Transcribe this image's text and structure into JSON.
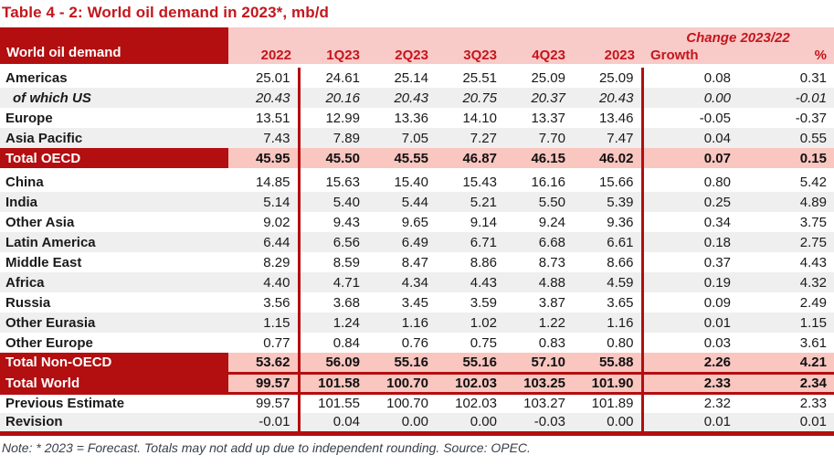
{
  "title": "Table 4 - 2: World oil demand in 2023*, mb/d",
  "note": "Note: * 2023 = Forecast. Totals may not add up due to independent rounding. Source: OPEC.",
  "colors": {
    "dark_red": "#b30e10",
    "header_text_red": "#c4161c",
    "pink_header": "#f8cac8",
    "pink_total": "#f9c6c0",
    "alt_row_gray": "#efefef",
    "note_text": "#3a4049"
  },
  "table": {
    "corner_label": "World oil demand",
    "change_header": "Change 2023/22",
    "columns": [
      "2022",
      "1Q23",
      "2Q23",
      "3Q23",
      "4Q23",
      "2023",
      "Growth",
      "%"
    ],
    "sections": [
      {
        "rows": [
          {
            "label": "Americas",
            "style": "plain",
            "values": [
              "25.01",
              "24.61",
              "25.14",
              "25.51",
              "25.09",
              "25.09",
              "0.08",
              "0.31"
            ]
          },
          {
            "label": "of which US",
            "style": "italic",
            "values": [
              "20.43",
              "20.16",
              "20.43",
              "20.75",
              "20.37",
              "20.43",
              "0.00",
              "-0.01"
            ]
          },
          {
            "label": "Europe",
            "style": "plain",
            "values": [
              "13.51",
              "12.99",
              "13.36",
              "14.10",
              "13.37",
              "13.46",
              "-0.05",
              "-0.37"
            ]
          },
          {
            "label": "Asia Pacific",
            "style": "alt",
            "values": [
              "7.43",
              "7.89",
              "7.05",
              "7.27",
              "7.70",
              "7.47",
              "0.04",
              "0.55"
            ]
          },
          {
            "label": "Total OECD",
            "style": "total",
            "values": [
              "45.95",
              "45.50",
              "45.55",
              "46.87",
              "46.15",
              "46.02",
              "0.07",
              "0.15"
            ]
          }
        ]
      },
      {
        "rows": [
          {
            "label": "China",
            "style": "plain",
            "values": [
              "14.85",
              "15.63",
              "15.40",
              "15.43",
              "16.16",
              "15.66",
              "0.80",
              "5.42"
            ]
          },
          {
            "label": "India",
            "style": "alt",
            "values": [
              "5.14",
              "5.40",
              "5.44",
              "5.21",
              "5.50",
              "5.39",
              "0.25",
              "4.89"
            ]
          },
          {
            "label": "Other Asia",
            "style": "plain",
            "values": [
              "9.02",
              "9.43",
              "9.65",
              "9.14",
              "9.24",
              "9.36",
              "0.34",
              "3.75"
            ]
          },
          {
            "label": "Latin America",
            "style": "alt",
            "values": [
              "6.44",
              "6.56",
              "6.49",
              "6.71",
              "6.68",
              "6.61",
              "0.18",
              "2.75"
            ]
          },
          {
            "label": "Middle East",
            "style": "plain",
            "values": [
              "8.29",
              "8.59",
              "8.47",
              "8.86",
              "8.73",
              "8.66",
              "0.37",
              "4.43"
            ]
          },
          {
            "label": "Africa",
            "style": "alt",
            "values": [
              "4.40",
              "4.71",
              "4.34",
              "4.43",
              "4.88",
              "4.59",
              "0.19",
              "4.32"
            ]
          },
          {
            "label": "Russia",
            "style": "plain",
            "values": [
              "3.56",
              "3.68",
              "3.45",
              "3.59",
              "3.87",
              "3.65",
              "0.09",
              "2.49"
            ]
          },
          {
            "label": "Other Eurasia",
            "style": "alt",
            "values": [
              "1.15",
              "1.24",
              "1.16",
              "1.02",
              "1.22",
              "1.16",
              "0.01",
              "1.15"
            ]
          },
          {
            "label": "Other Europe",
            "style": "plain",
            "values": [
              "0.77",
              "0.84",
              "0.76",
              "0.75",
              "0.83",
              "0.80",
              "0.03",
              "3.61"
            ]
          },
          {
            "label": "Total Non-OECD",
            "style": "total",
            "values": [
              "53.62",
              "56.09",
              "55.16",
              "55.16",
              "57.10",
              "55.88",
              "2.26",
              "4.21"
            ]
          },
          {
            "label": "Total World",
            "style": "total",
            "values": [
              "99.57",
              "101.58",
              "100.70",
              "102.03",
              "103.25",
              "101.90",
              "2.33",
              "2.34"
            ]
          }
        ]
      },
      {
        "rows": [
          {
            "label": "Previous Estimate",
            "style": "plain",
            "values": [
              "99.57",
              "101.55",
              "100.70",
              "102.03",
              "103.27",
              "101.89",
              "2.32",
              "2.33"
            ]
          },
          {
            "label": "Revision",
            "style": "alt",
            "values": [
              "-0.01",
              "0.04",
              "0.00",
              "0.00",
              "-0.03",
              "0.00",
              "0.01",
              "0.01"
            ]
          }
        ]
      }
    ]
  }
}
